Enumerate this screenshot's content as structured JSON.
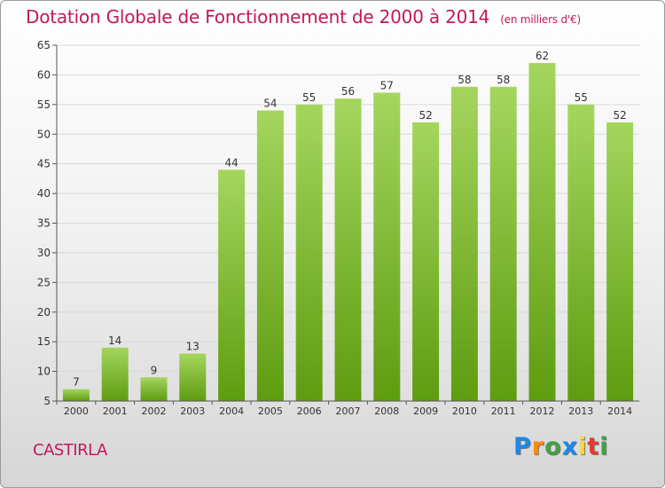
{
  "header": {
    "title": "Dotation Globale de Fonctionnement de 2000 à 2014",
    "unit": "(en milliers d'€)"
  },
  "footer": {
    "commune": "CASTIRLA",
    "brand": "Proxiti",
    "brand_colors": [
      "#1e88e5",
      "#fb8c00",
      "#43a047",
      "#1e88e5",
      "#fdd835",
      "#e53935",
      "#43a047"
    ]
  },
  "colors": {
    "bar_light": "#a4d65e",
    "bar_dark": "#5e9c10",
    "grid": "#d9d9d9",
    "axis_text": "#333333",
    "title": "#c2185b"
  },
  "chart_data": {
    "type": "bar",
    "title": "Dotation Globale de Fonctionnement de 2000 à 2014",
    "subtitle": "(en milliers d'€)",
    "xlabel": "",
    "ylabel": "",
    "categories": [
      "2000",
      "2001",
      "2002",
      "2003",
      "2004",
      "2005",
      "2006",
      "2007",
      "2008",
      "2009",
      "2010",
      "2011",
      "2012",
      "2013",
      "2014"
    ],
    "values": [
      7,
      14,
      9,
      13,
      44,
      54,
      55,
      56,
      57,
      52,
      58,
      58,
      62,
      55,
      52
    ],
    "ylim": [
      5,
      65
    ],
    "yticks": [
      5,
      10,
      15,
      20,
      25,
      30,
      35,
      40,
      45,
      50,
      55,
      60,
      65
    ],
    "grid": true,
    "data_labels": true
  }
}
